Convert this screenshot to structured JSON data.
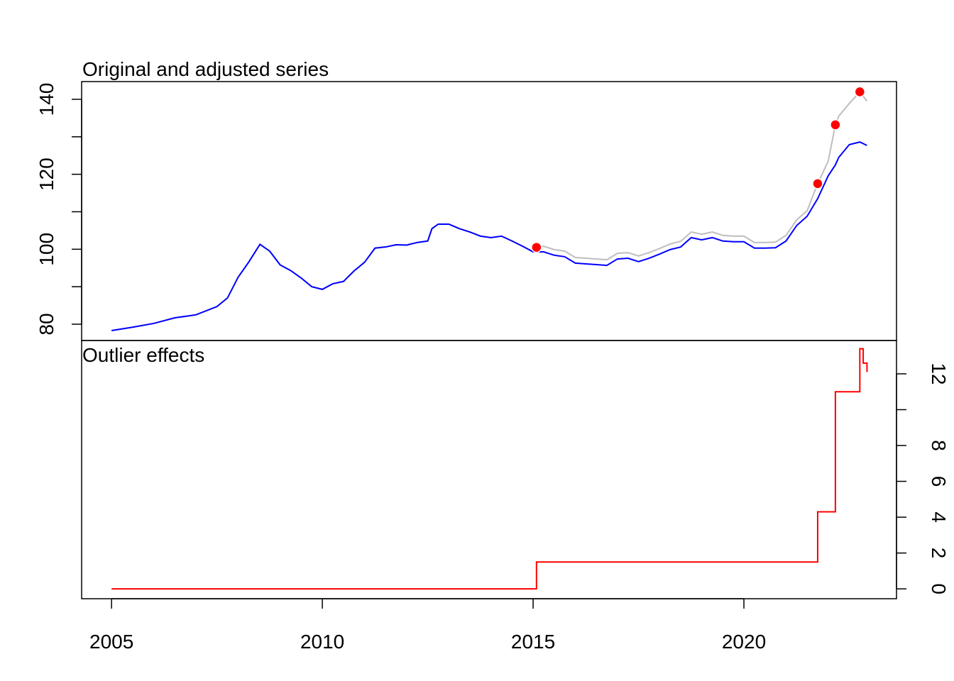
{
  "chart_data": [
    {
      "type": "line",
      "title": "Original and adjusted series",
      "x": [
        2005.0,
        2005.5,
        2006.0,
        2006.5,
        2007.0,
        2007.5,
        2007.75,
        2008.0,
        2008.25,
        2008.52,
        2008.75,
        2009.0,
        2009.25,
        2009.5,
        2009.75,
        2010.0,
        2010.25,
        2010.5,
        2010.75,
        2011.0,
        2011.25,
        2011.5,
        2011.75,
        2012.0,
        2012.25,
        2012.5,
        2012.6,
        2012.75,
        2013.0,
        2013.25,
        2013.5,
        2013.75,
        2014.0,
        2014.25,
        2014.5,
        2014.75,
        2015.0,
        2015.08,
        2015.25,
        2015.5,
        2015.75,
        2016.0,
        2016.25,
        2016.5,
        2016.75,
        2017.0,
        2017.25,
        2017.5,
        2017.75,
        2018.0,
        2018.25,
        2018.5,
        2018.75,
        2019.0,
        2019.25,
        2019.5,
        2019.75,
        2020.0,
        2020.25,
        2020.5,
        2020.75,
        2021.0,
        2021.25,
        2021.5,
        2021.75,
        2022.0,
        2022.17,
        2022.25,
        2022.5,
        2022.75,
        2022.92
      ],
      "series": [
        {
          "color": "#bebebe",
          "values": [
            78.3,
            79.2,
            80.2,
            81.7,
            82.5,
            84.7,
            87,
            92.5,
            96.5,
            101.3,
            99.5,
            95.8,
            94.3,
            92.3,
            90,
            89.3,
            90.8,
            91.4,
            94.2,
            96.5,
            100.3,
            100.6,
            101.2,
            101.1,
            101.8,
            102.2,
            105.5,
            106.7,
            106.7,
            105.5,
            104.6,
            103.5,
            103.1,
            103.5,
            102.2,
            100.8,
            99.3,
            100.5,
            100.8,
            99.9,
            99.5,
            97.8,
            97.6,
            97.4,
            97.2,
            98.9,
            99.1,
            98.2,
            99.1,
            100.2,
            101.4,
            102.1,
            104.6,
            104,
            104.6,
            103.7,
            103.5,
            103.5,
            101.8,
            101.8,
            101.9,
            103.7,
            107.8,
            110.3,
            117.5,
            123.5,
            133.2,
            135.5,
            138.9,
            142,
            139.5
          ]
        },
        {
          "color": "#0000ff",
          "values": [
            78.3,
            79.2,
            80.2,
            81.7,
            82.5,
            84.7,
            87,
            92.5,
            96.5,
            101.3,
            99.5,
            95.8,
            94.3,
            92.3,
            90,
            89.3,
            90.8,
            91.4,
            94.2,
            96.5,
            100.3,
            100.6,
            101.2,
            101.1,
            101.8,
            102.2,
            105.5,
            106.7,
            106.7,
            105.5,
            104.6,
            103.5,
            103.1,
            103.5,
            102.2,
            100.8,
            99.3,
            99.3,
            99.3,
            98.4,
            98,
            96.3,
            96.1,
            95.9,
            95.7,
            97.4,
            97.6,
            96.7,
            97.6,
            98.7,
            99.9,
            100.6,
            103.1,
            102.5,
            103.1,
            102.2,
            102,
            102,
            100.3,
            100.3,
            100.4,
            102.2,
            106.3,
            108.8,
            113.5,
            119.6,
            122.5,
            124.5,
            127.9,
            128.6,
            127.7
          ]
        }
      ],
      "points": {
        "color": "#ff0000",
        "x": [
          2015.08,
          2021.75,
          2022.17,
          2022.75
        ],
        "values": [
          100.5,
          117.5,
          133.2,
          142
        ]
      },
      "xlim": [
        2004.29,
        2023.62
      ],
      "ylim": [
        75.65,
        144.73
      ],
      "yticks": [
        80,
        100,
        120,
        140
      ],
      "yticks_minor": [
        90,
        110,
        130
      ]
    },
    {
      "type": "step",
      "title": "Outlier effects",
      "color": "#ff0000",
      "x": [
        2005.0,
        2015.08,
        2021.75,
        2022.17,
        2022.75,
        2022.83,
        2022.92
      ],
      "values": [
        0,
        1.5,
        4.3,
        11,
        13.4,
        12.6,
        12.1
      ],
      "xlim": [
        2004.29,
        2023.62
      ],
      "ylim": [
        -0.55,
        13.86
      ],
      "yticks": [
        0,
        2,
        4,
        6,
        8,
        12
      ],
      "yticks_minor": [
        10
      ],
      "xticks": [
        2005,
        2010,
        2015,
        2020
      ]
    }
  ]
}
